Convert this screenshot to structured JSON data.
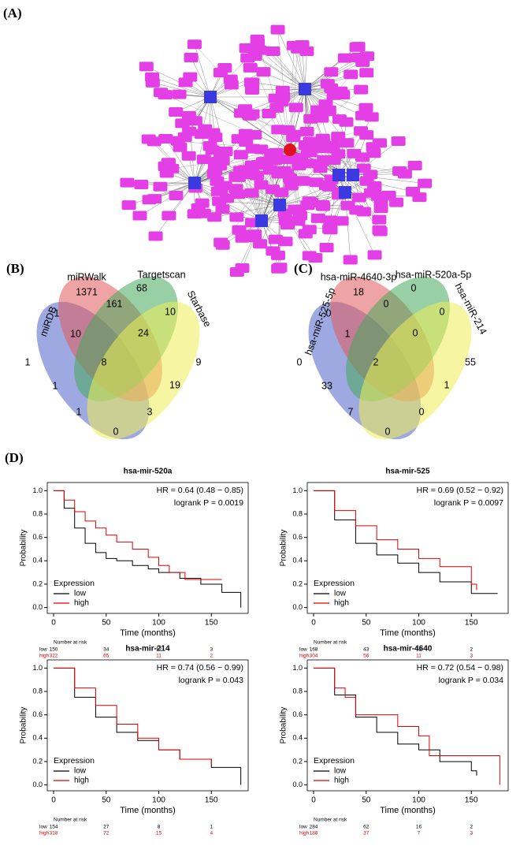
{
  "panel_labels": [
    "(A)",
    "(B)",
    "(C)",
    "(D)"
  ],
  "chart_data": [
    {
      "type": "venn",
      "sets": [
        "miRDB",
        "miRWalk",
        "Targetscan",
        "Starbase"
      ],
      "colors": [
        "#5063c9",
        "#e05a5a",
        "#45a85a",
        "#eeee55"
      ],
      "values": [
        1371,
        68,
        1,
        9,
        1,
        161,
        10,
        10,
        24,
        1,
        8,
        19,
        1,
        3,
        0
      ]
    },
    {
      "type": "venn",
      "sets": [
        "hsa-miR-525-5p",
        "hsa-miR-4640-3p",
        "hsa-miR-520a-5p",
        "hsa-miR-214"
      ],
      "colors": [
        "#5063c9",
        "#e05a5a",
        "#45a85a",
        "#eeee55"
      ],
      "values": [
        18,
        0,
        0,
        55,
        0,
        0,
        0,
        1,
        0,
        33,
        2,
        1,
        7,
        0,
        0
      ]
    },
    {
      "type": "survival",
      "title": "hsa-mir-520a",
      "annotations": [
        "HR = 0.64 (0.48 − 0.85)",
        "logrank P = 0.0019"
      ],
      "xlabel": "Time (months)",
      "ylabel": "Probability",
      "xlim": [
        -6,
        185
      ],
      "ylim": [
        -0.05,
        1.07
      ],
      "xticks": [
        0,
        50,
        100,
        150
      ],
      "yticks": [
        {
          "value": 0,
          "label": "0.0"
        },
        {
          "value": 0.2,
          "label": "0.2"
        },
        {
          "value": 0.4,
          "label": "0.4"
        },
        {
          "value": 0.6,
          "label": "0.6"
        },
        {
          "value": 0.8,
          "label": "0.8"
        },
        {
          "value": 1,
          "label": "1.0"
        }
      ],
      "legend_title": "Expression",
      "series": [
        {
          "name": "low",
          "color": "#000000",
          "x": [
            0,
            10,
            20,
            30,
            40,
            50,
            60,
            75,
            90,
            100,
            120,
            140,
            160,
            178
          ],
          "values": [
            1,
            0.85,
            0.68,
            0.55,
            0.47,
            0.42,
            0.4,
            0.36,
            0.33,
            0.3,
            0.25,
            0.2,
            0.13,
            0
          ]
        },
        {
          "name": "high",
          "color": "#e00000",
          "x": [
            0,
            10,
            20,
            30,
            40,
            50,
            60,
            75,
            90,
            100,
            110,
            125,
            160
          ],
          "values": [
            1,
            0.92,
            0.82,
            0.74,
            0.68,
            0.62,
            0.56,
            0.5,
            0.43,
            0.36,
            0.3,
            0.24,
            0.24
          ]
        }
      ],
      "risk_table": {
        "title": "Number at risk",
        "rows": [
          {
            "name": "low",
            "values": [
              150,
              34,
              12,
              3
            ]
          },
          {
            "name": "high",
            "values": [
              322,
              65,
              11,
              2
            ]
          }
        ]
      }
    },
    {
      "type": "survival",
      "title": "hsa-mir-525",
      "annotations": [
        "HR = 0.69 (0.52 − 0.92)",
        "logrank P = 0.0097"
      ],
      "xlabel": "Time (months)",
      "ylabel": "Probability",
      "xlim": [
        -6,
        185
      ],
      "ylim": [
        -0.05,
        1.07
      ],
      "xticks": [
        0,
        50,
        100,
        150
      ],
      "yticks": [
        {
          "value": 0,
          "label": "0.0"
        },
        {
          "value": 0.2,
          "label": "0.2"
        },
        {
          "value": 0.4,
          "label": "0.4"
        },
        {
          "value": 0.6,
          "label": "0.6"
        },
        {
          "value": 0.8,
          "label": "0.8"
        },
        {
          "value": 1,
          "label": "1.0"
        }
      ],
      "legend_title": "Expression",
      "series": [
        {
          "name": "low",
          "color": "#000000",
          "x": [
            0,
            20,
            40,
            60,
            80,
            100,
            120,
            150,
            175
          ],
          "values": [
            1,
            0.75,
            0.55,
            0.45,
            0.38,
            0.3,
            0.22,
            0.12,
            0.12
          ]
        },
        {
          "name": "high",
          "color": "#e00000",
          "x": [
            0,
            20,
            40,
            60,
            80,
            100,
            120,
            150,
            155
          ],
          "values": [
            1,
            0.83,
            0.7,
            0.58,
            0.5,
            0.42,
            0.35,
            0.2,
            0.15
          ]
        }
      ],
      "risk_table": {
        "title": "Number at risk",
        "rows": [
          {
            "name": "low",
            "values": [
              168,
              43,
              12,
              2
            ]
          },
          {
            "name": "high",
            "values": [
              304,
              56,
              11,
              3
            ]
          }
        ]
      }
    },
    {
      "type": "survival",
      "title": "hsa-mir-214",
      "annotations": [
        "HR = 0.74 (0.56 − 0.99)",
        "logrank P = 0.043"
      ],
      "xlabel": "Time (months)",
      "ylabel": "Probability",
      "xlim": [
        -6,
        185
      ],
      "ylim": [
        -0.05,
        1.07
      ],
      "xticks": [
        0,
        50,
        100,
        150
      ],
      "yticks": [
        {
          "value": 0,
          "label": "0.0"
        },
        {
          "value": 0.2,
          "label": "0.2"
        },
        {
          "value": 0.4,
          "label": "0.4"
        },
        {
          "value": 0.6,
          "label": "0.6"
        },
        {
          "value": 0.8,
          "label": "0.8"
        },
        {
          "value": 1,
          "label": "1.0"
        }
      ],
      "legend_title": "Expression",
      "series": [
        {
          "name": "low",
          "color": "#000000",
          "x": [
            0,
            20,
            40,
            60,
            80,
            100,
            120,
            150,
            178
          ],
          "values": [
            1,
            0.75,
            0.58,
            0.45,
            0.38,
            0.3,
            0.22,
            0.15,
            0
          ]
        },
        {
          "name": "high",
          "color": "#e00000",
          "x": [
            0,
            20,
            40,
            60,
            80,
            100,
            120,
            150
          ],
          "values": [
            1,
            0.83,
            0.68,
            0.52,
            0.4,
            0.3,
            0.22,
            0.18
          ]
        }
      ],
      "risk_table": {
        "title": "Number at risk",
        "rows": [
          {
            "name": "low",
            "values": [
              154,
              27,
              8,
              1
            ]
          },
          {
            "name": "high",
            "values": [
              318,
              72,
              15,
              4
            ]
          }
        ]
      }
    },
    {
      "type": "survival",
      "title": "hsa-mir-4640",
      "annotations": [
        "HR = 0.72 (0.54 − 0.98)",
        "logrank P = 0.034"
      ],
      "xlabel": "Time (months)",
      "ylabel": "Probability",
      "xlim": [
        -6,
        185
      ],
      "ylim": [
        -0.05,
        1.07
      ],
      "xticks": [
        0,
        50,
        100,
        150
      ],
      "yticks": [
        {
          "value": 0,
          "label": "0.0"
        },
        {
          "value": 0.2,
          "label": "0.2"
        },
        {
          "value": 0.4,
          "label": "0.4"
        },
        {
          "value": 0.6,
          "label": "0.6"
        },
        {
          "value": 0.8,
          "label": "0.8"
        },
        {
          "value": 1,
          "label": "1.0"
        }
      ],
      "legend_title": "Expression",
      "series": [
        {
          "name": "low",
          "color": "#000000",
          "x": [
            0,
            20,
            40,
            60,
            80,
            100,
            120,
            150,
            155
          ],
          "values": [
            1,
            0.77,
            0.58,
            0.45,
            0.35,
            0.3,
            0.2,
            0.12,
            0.08
          ]
        },
        {
          "name": "high",
          "color": "#e00000",
          "x": [
            0,
            20,
            30,
            40,
            60,
            80,
            100,
            110,
            175,
            177
          ],
          "values": [
            1,
            0.83,
            0.75,
            0.6,
            0.6,
            0.5,
            0.42,
            0.25,
            0.25,
            0
          ]
        }
      ],
      "risk_table": {
        "title": "Number at risk",
        "rows": [
          {
            "name": "low",
            "values": [
              284,
              62,
              16,
              2
            ]
          },
          {
            "name": "high",
            "values": [
              188,
              37,
              7,
              3
            ]
          }
        ]
      }
    }
  ]
}
